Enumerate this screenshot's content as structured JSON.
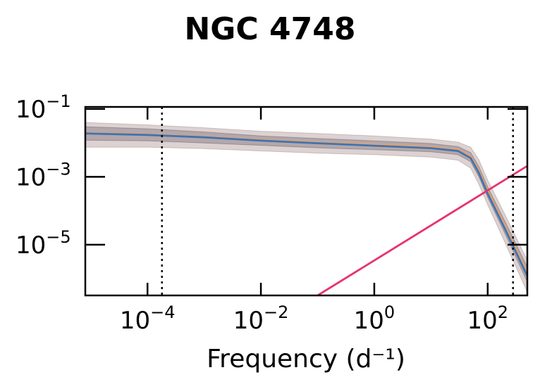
{
  "chart_data": {
    "type": "line",
    "title": "NGC 4748",
    "xlabel": "Frequency (d⁻¹)",
    "ylabel": "",
    "xscale": "log",
    "yscale": "log",
    "xlim": [
      8e-06,
      500
    ],
    "ylim": [
      3.2e-07,
      0.115
    ],
    "x_ticks": [
      {
        "value": 0.0001,
        "base": "10",
        "exp": "−4"
      },
      {
        "value": 0.01,
        "base": "10",
        "exp": "−2"
      },
      {
        "value": 1,
        "base": "10",
        "exp": "0"
      },
      {
        "value": 100,
        "base": "10",
        "exp": "2"
      }
    ],
    "y_ticks": [
      {
        "value": 0.1,
        "base": "10",
        "exp": "−1"
      },
      {
        "value": 0.001,
        "base": "10",
        "exp": "−3"
      },
      {
        "value": 1e-05,
        "base": "10",
        "exp": "−5"
      }
    ],
    "vlines": [
      0.00018,
      280
    ],
    "bands": [
      {
        "color": "#8b6b6b",
        "opacity": 0.3,
        "x": [
          8e-06,
          0.0001,
          0.001,
          0.01,
          0.1,
          1,
          10,
          30,
          50,
          70,
          100,
          200,
          500
        ],
        "lower": [
          0.0075,
          0.0075,
          0.0068,
          0.0058,
          0.005,
          0.0045,
          0.0038,
          0.0031,
          0.0018,
          0.0006,
          0.00015,
          1.2e-05,
          4e-07
        ],
        "upper": [
          0.04,
          0.034,
          0.028,
          0.022,
          0.019,
          0.016,
          0.013,
          0.0105,
          0.0075,
          0.0032,
          0.0008,
          8e-05,
          3.5e-06
        ]
      },
      {
        "color": "#4a3b47",
        "opacity": 0.28,
        "x": [
          8e-06,
          0.0001,
          0.001,
          0.01,
          0.1,
          1,
          10,
          30,
          50,
          70,
          100,
          200,
          500
        ],
        "lower": [
          0.012,
          0.0115,
          0.01,
          0.0085,
          0.0072,
          0.0063,
          0.0055,
          0.0045,
          0.0028,
          0.001,
          0.00025,
          2.2e-05,
          8e-07
        ],
        "upper": [
          0.03,
          0.026,
          0.021,
          0.016,
          0.0135,
          0.0115,
          0.0096,
          0.0078,
          0.0052,
          0.002,
          0.0005,
          5e-05,
          2.2e-06
        ]
      }
    ],
    "series": [
      {
        "color": "#f5a05a",
        "x": [
          8e-06,
          0.0001,
          0.001,
          0.01,
          0.1,
          1,
          10,
          30,
          50,
          70,
          100,
          200,
          500
        ],
        "y": [
          0.0195,
          0.0178,
          0.0152,
          0.0122,
          0.0102,
          0.0088,
          0.0075,
          0.0062,
          0.004,
          0.0015,
          0.00037,
          3.5e-05,
          1.4e-06
        ]
      },
      {
        "color": "#3d74b3",
        "x": [
          8e-06,
          0.0001,
          0.001,
          0.01,
          0.1,
          1,
          10,
          30,
          50,
          70,
          100,
          200,
          500
        ],
        "y": [
          0.019,
          0.0172,
          0.0146,
          0.0117,
          0.0098,
          0.0083,
          0.007,
          0.0058,
          0.0036,
          0.0013,
          0.00032,
          3e-05,
          1.2e-06
        ]
      },
      {
        "color": "#e8336e",
        "x": [
          0.1,
          500
        ],
        "y": [
          3.2e-07,
          0.0021
        ]
      }
    ]
  }
}
